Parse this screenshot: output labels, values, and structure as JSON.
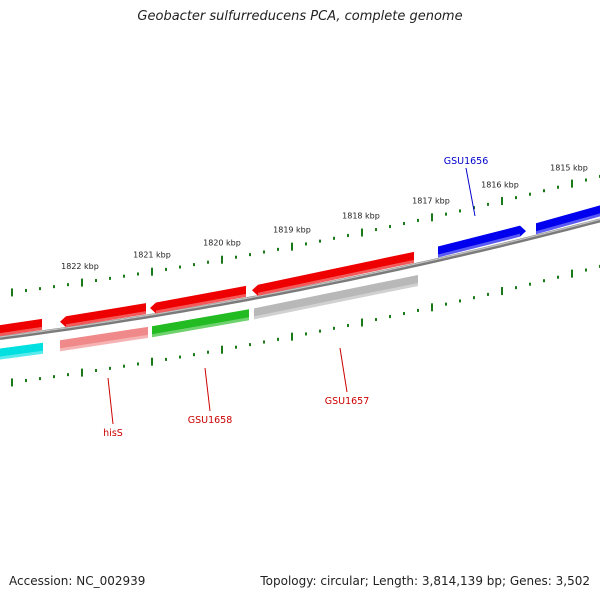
{
  "title": "Geobacter sulfurreducens PCA, complete genome",
  "footer": {
    "accession": "Accession: NC_002939",
    "summary": "Topology: circular; Length: 3,814,139 bp; Genes: 3,502"
  },
  "colors": {
    "forward_red": "#ee0000",
    "forward_blue": "#0000ee",
    "reverse_pink": "#f08a8a",
    "reverse_green": "#22bb22",
    "reverse_gray": "#b8b8b8",
    "reverse_cyan": "#00e0e0",
    "ticks": "#1a7a1a",
    "backbone": "#7a7a7a",
    "label_red": "#cc0000",
    "label_blue": "#0000cc"
  },
  "ticks": {
    "labels": [
      "1822 kbp",
      "1821 kbp",
      "1820 kbp",
      "1819 kbp",
      "1818 kbp",
      "1817 kbp",
      "1816 kbp",
      "1815 kbp"
    ]
  },
  "genes": [
    {
      "name": "hisS",
      "color": "#cc0000"
    },
    {
      "name": "GSU1658",
      "color": "#cc0000"
    },
    {
      "name": "GSU1657",
      "color": "#cc0000"
    },
    {
      "name": "GSU1656",
      "color": "#0000cc"
    }
  ]
}
